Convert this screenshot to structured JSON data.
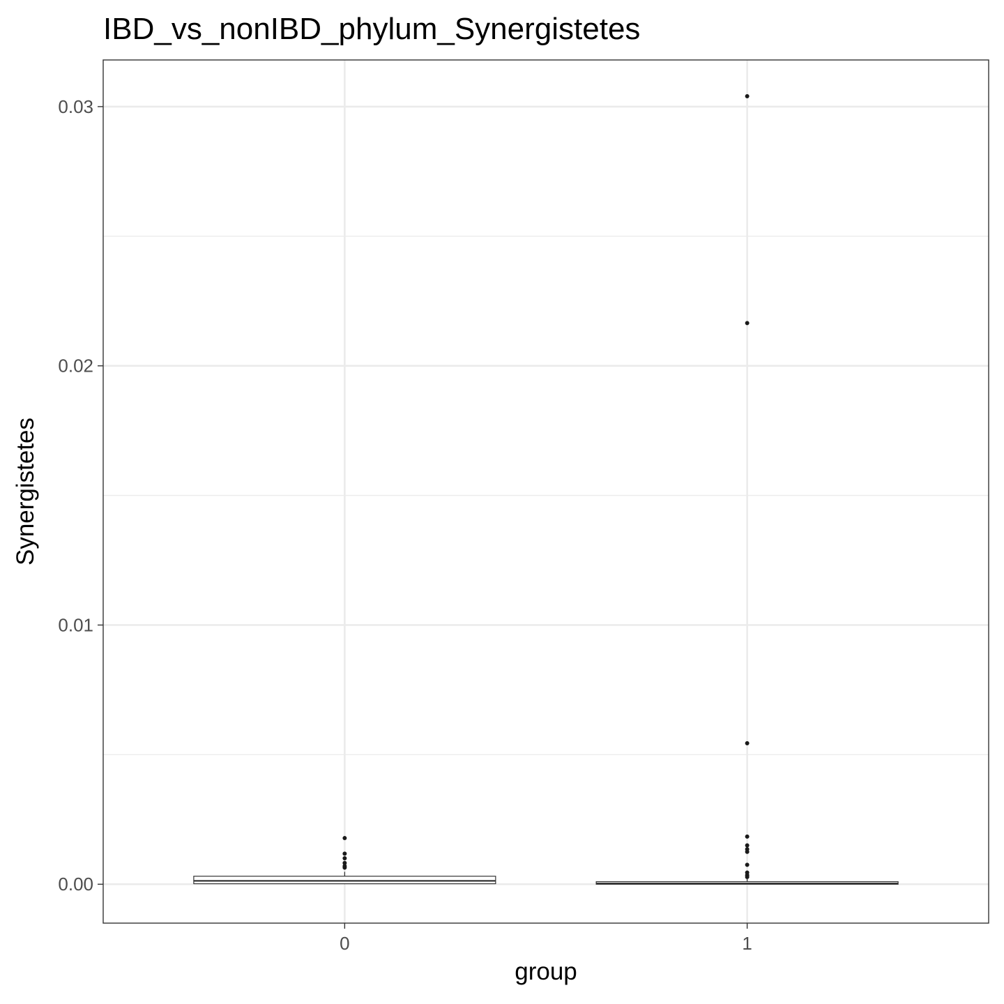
{
  "chart_data": {
    "type": "box",
    "title": "IBD_vs_nonIBD_phylum_Synergistetes",
    "xlabel": "group",
    "ylabel": "Synergistetes",
    "categories": [
      "0",
      "1"
    ],
    "ylim": [
      -0.0015,
      0.0318
    ],
    "yticks": [
      0.0,
      0.01,
      0.02,
      0.03
    ],
    "ytick_labels": [
      "0.00",
      "0.01",
      "0.02",
      "0.03"
    ],
    "grid": true,
    "boxes": [
      {
        "group": "0",
        "q1": 2e-05,
        "median": 0.00013,
        "q3": 0.00031,
        "whisker_low": 0.0,
        "whisker_high": 0.00048,
        "outliers": [
          0.00178,
          0.00118,
          0.001,
          0.00082,
          0.0007,
          0.00064
        ]
      },
      {
        "group": "1",
        "q1": 0.0,
        "median": 3e-05,
        "q3": 0.0001,
        "whisker_low": 0.0,
        "whisker_high": 0.0002,
        "outliers": [
          0.0304,
          0.02165,
          0.00544,
          0.00184,
          0.0015,
          0.00135,
          0.00125,
          0.00075,
          0.00045,
          0.00035,
          0.00028
        ]
      }
    ]
  }
}
